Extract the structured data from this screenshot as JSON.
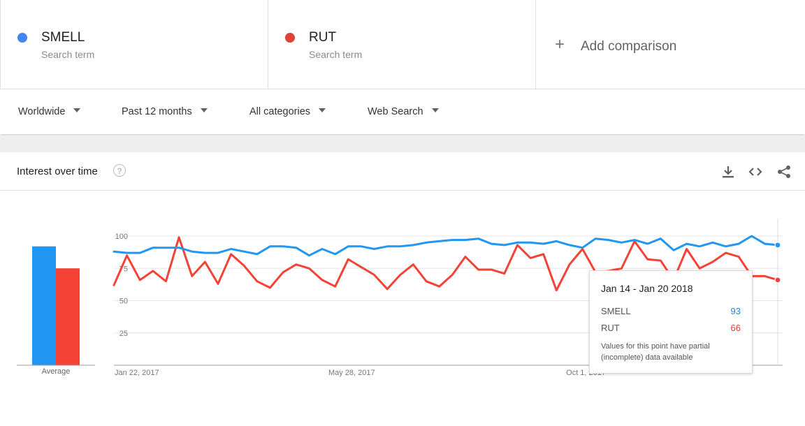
{
  "terms": [
    {
      "name": "SMELL",
      "sub": "Search term",
      "color": "#4285f4"
    },
    {
      "name": "RUT",
      "sub": "Search term",
      "color": "#db4437"
    }
  ],
  "add_comparison": {
    "plus": "+",
    "label": "Add comparison"
  },
  "filters": {
    "region": "Worldwide",
    "time": "Past 12 months",
    "category": "All categories",
    "search_type": "Web Search"
  },
  "panel": {
    "title": "Interest over time",
    "help": "?"
  },
  "icons": [
    "download-icon",
    "embed-icon",
    "share-icon"
  ],
  "average": {
    "label": "Average",
    "values": [
      92,
      75
    ]
  },
  "tooltip": {
    "date": "Jan 14 - Jan 20 2018",
    "rows": [
      {
        "name": "SMELL",
        "value": "93",
        "color": "#1e88e5"
      },
      {
        "name": "RUT",
        "value": "66",
        "color": "#e53935"
      }
    ],
    "note": "Values for this point have partial (incomplete) data available"
  },
  "chart_data": {
    "type": "line",
    "ylim": [
      0,
      100
    ],
    "y_ticks": [
      25,
      50,
      75,
      100
    ],
    "x_tick_labels": [
      "Jan 22, 2017",
      "May 28, 2017",
      "Oct 1, 2017"
    ],
    "x_tick_indices": [
      0,
      18,
      36
    ],
    "series": [
      {
        "name": "SMELL",
        "color": "#2196f3",
        "values": [
          88,
          87,
          87,
          91,
          91,
          91,
          88,
          87,
          87,
          90,
          88,
          86,
          92,
          92,
          91,
          85,
          90,
          86,
          92,
          92,
          90,
          92,
          92,
          93,
          95,
          96,
          97,
          97,
          98,
          94,
          93,
          95,
          95,
          94,
          96,
          93,
          91,
          98,
          97,
          95,
          97,
          94,
          98,
          89,
          94,
          92,
          95,
          92,
          94,
          100,
          94,
          93
        ]
      },
      {
        "name": "RUT",
        "color": "#f44336",
        "values": [
          62,
          85,
          66,
          73,
          65,
          99,
          69,
          80,
          63,
          86,
          77,
          65,
          60,
          72,
          78,
          75,
          66,
          61,
          82,
          76,
          70,
          59,
          70,
          78,
          65,
          61,
          70,
          84,
          74,
          74,
          71,
          93,
          83,
          86,
          58,
          78,
          90,
          72,
          73,
          75,
          96,
          82,
          81,
          66,
          90,
          75,
          80,
          87,
          84,
          69,
          69,
          66
        ]
      }
    ],
    "grid": true,
    "legend": "top"
  }
}
